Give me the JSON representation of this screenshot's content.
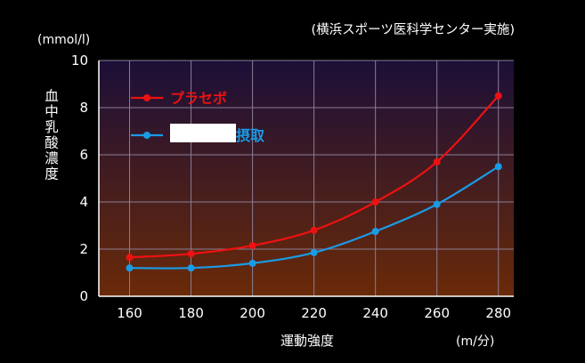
{
  "chart_data": {
    "type": "line",
    "source_note": "(横浜スポーツ医科学センター実施)",
    "y_unit": "(mmol/l)",
    "ylabel": "血中乳酸濃度",
    "xlabel": "運動強度",
    "x_unit": "(m/分)",
    "x": [
      160,
      180,
      200,
      220,
      240,
      260,
      280
    ],
    "xlim": [
      150,
      285
    ],
    "ylim": [
      0,
      10
    ],
    "y_ticks": [
      0,
      2,
      4,
      6,
      8,
      10
    ],
    "grid": true,
    "legend_position": "top-left",
    "series": [
      {
        "name": "プラセボ",
        "color": "#ee1111",
        "values": [
          1.65,
          1.8,
          2.15,
          2.8,
          4.0,
          5.7,
          8.5
        ]
      },
      {
        "name": "摂取",
        "color": "#1a9be6",
        "values": [
          1.2,
          1.2,
          1.4,
          1.85,
          2.75,
          3.9,
          5.5
        ]
      }
    ],
    "colors": {
      "background": "#000000",
      "plot_top": "#1c0f38",
      "plot_bottom": "#6a2a08",
      "grid": "#8a7e96",
      "redacted_box": "#ffffff"
    }
  }
}
